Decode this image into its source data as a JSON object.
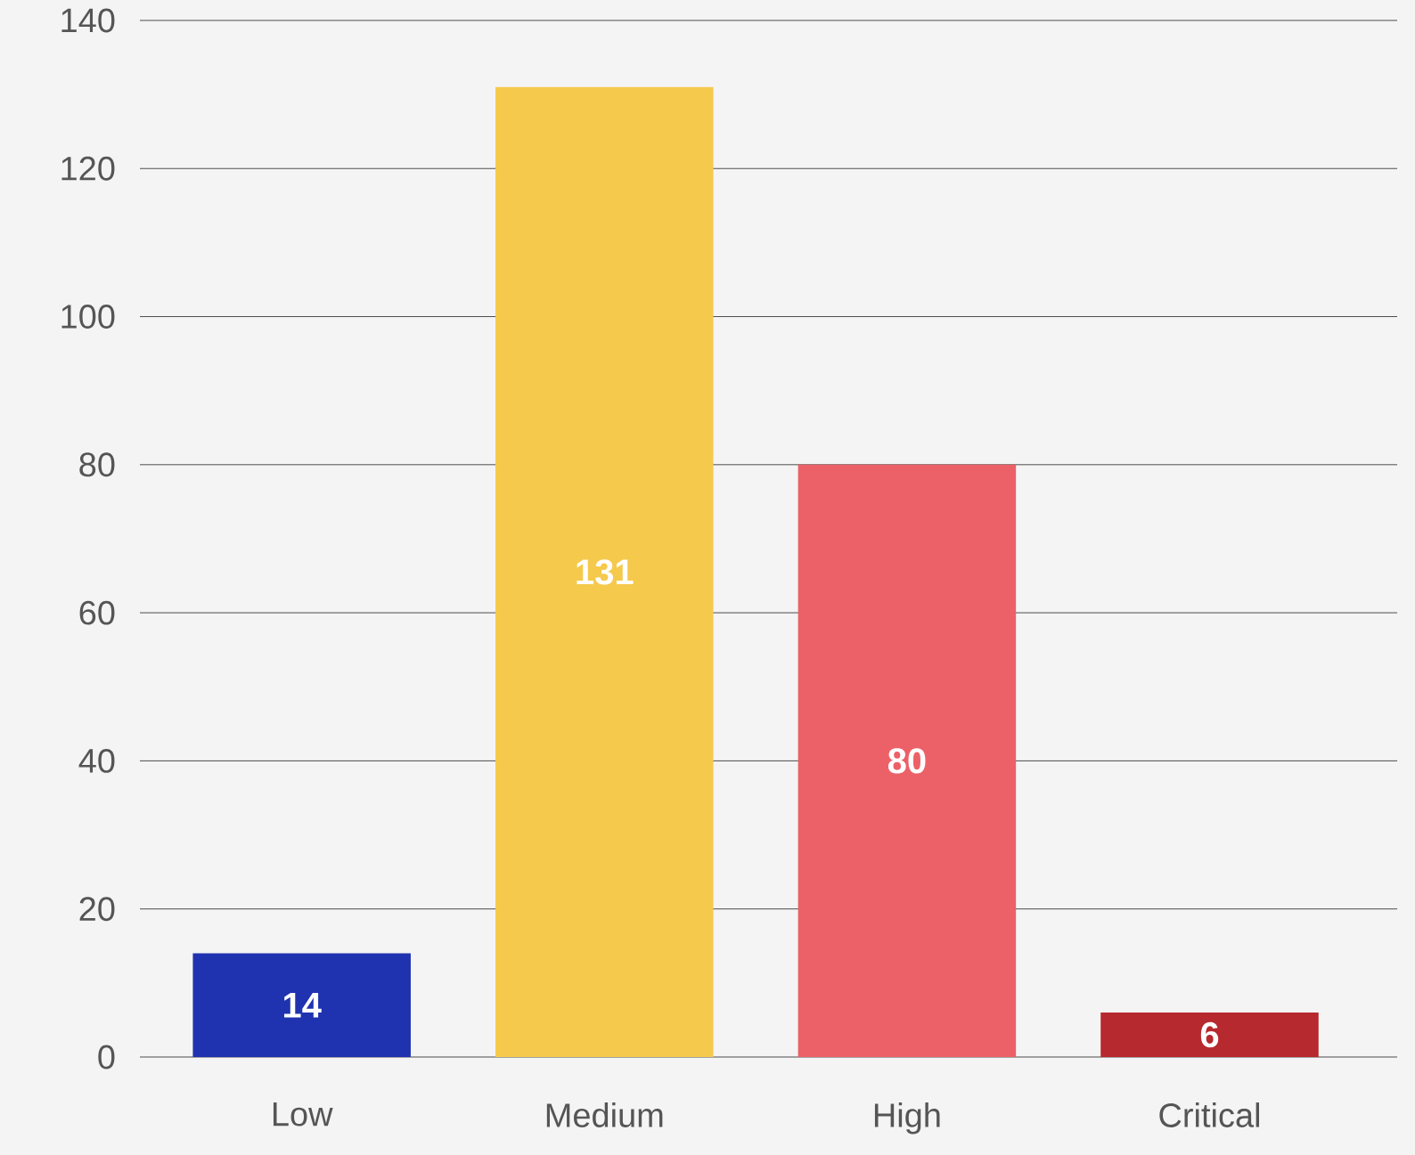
{
  "chart_data": {
    "type": "bar",
    "categories": [
      "Low",
      "Medium",
      "High",
      "Critical"
    ],
    "values": [
      14,
      131,
      80,
      6
    ],
    "colors": [
      "#1f33b0",
      "#f5c94b",
      "#ec6167",
      "#b6292e"
    ],
    "ylim": [
      0,
      140
    ],
    "yticks": [
      0,
      20,
      40,
      60,
      80,
      100,
      120,
      140
    ],
    "grid": "y",
    "data_labels": true
  }
}
